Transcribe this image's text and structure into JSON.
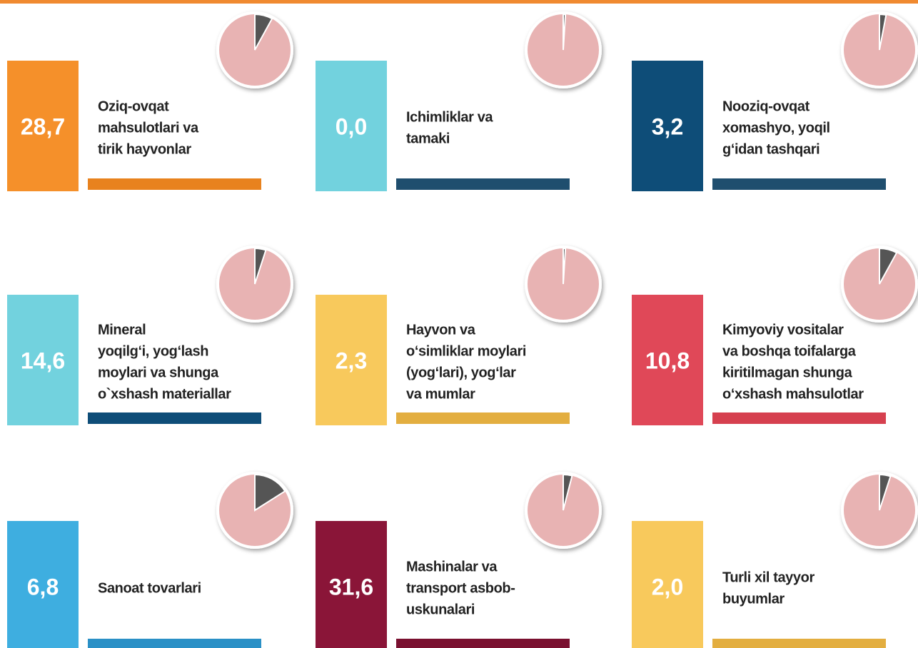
{
  "items": [
    {
      "value": "28,7",
      "label": [
        "Oziq-ovqat",
        "mahsulotlari va",
        "tirik hayvonlar"
      ],
      "share": 8,
      "box_color": "#f5902a",
      "bar_color": "#e8821e"
    },
    {
      "value": "0,0",
      "label": [
        "Ichimliklar va",
        "tamaki"
      ],
      "share": 1,
      "box_color": "#72d2de",
      "bar_color": "#1f4e6e"
    },
    {
      "value": "3,2",
      "label": [
        "Nooziq-ovqat",
        "xomashyo, yoqil",
        "g‘idan tashqari"
      ],
      "share": 3,
      "box_color": "#0e4d78",
      "bar_color": "#1f4e6e"
    },
    {
      "value": "14,6",
      "label": [
        "Mineral",
        "yoqilg‘i, yog‘lash",
        "moylari va shunga",
        "o`xshash materiallar"
      ],
      "share": 5,
      "box_color": "#72d2de",
      "bar_color": "#0e4d78"
    },
    {
      "value": "2,3",
      "label": [
        "Hayvon va",
        "o‘simliklar moylari",
        "(yog‘lari), yog‘lar",
        "va mumlar"
      ],
      "share": 1,
      "box_color": "#f8c95c",
      "bar_color": "#e3ae40"
    },
    {
      "value": "10,8",
      "label": [
        "Kimyoviy vositalar",
        "va boshqa toifalarga",
        "kiritilmagan shunga",
        "o‘xshash mahsulotlar"
      ],
      "share": 8,
      "box_color": "#e04858",
      "bar_color": "#d6404f"
    },
    {
      "value": "6,8",
      "label": [
        "Sanoat tovarlari"
      ],
      "share": 16,
      "box_color": "#3eaee0",
      "bar_color": "#2a90c6"
    },
    {
      "value": "31,6",
      "label": [
        "Mashinalar va",
        "transport asbob-",
        "uskunalari"
      ],
      "share": 4,
      "box_color": "#8a1538",
      "bar_color": "#7a1030"
    },
    {
      "value": "2,0",
      "label": [
        "Turli xil tayyor",
        "buyumlar"
      ],
      "share": 5,
      "box_color": "#f8c95c",
      "bar_color": "#e3ae40"
    }
  ]
}
